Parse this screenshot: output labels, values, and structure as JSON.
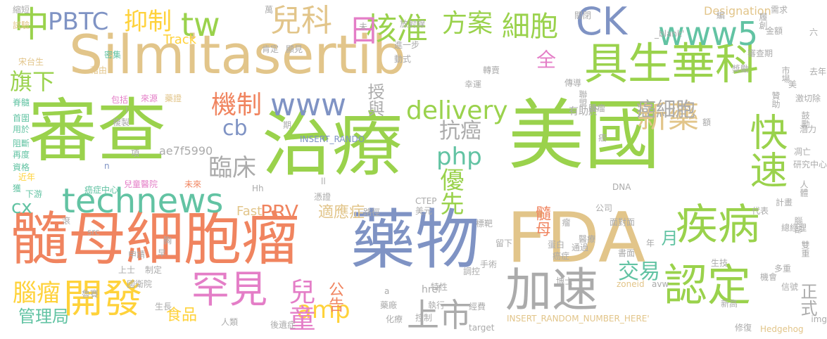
{
  "words": [
    {
      "text": "Silmitasertib",
      "color": "#e2c58a"
    },
    {
      "text": "美國",
      "color": "#9ad24c"
    },
    {
      "text": "審查",
      "color": "#9ad24c"
    },
    {
      "text": "治療",
      "color": "#9ad24c"
    },
    {
      "text": "FDA",
      "color": "#e2c58a"
    },
    {
      "text": "藥物",
      "color": "#7f93c4"
    },
    {
      "text": "髓母細胞瘤",
      "color": "#f0845f"
    },
    {
      "text": "具生華科",
      "color": "#9ad24c"
    },
    {
      "text": "加速",
      "color": "#ababab"
    },
    {
      "text": "疾病",
      "color": "#9ad24c"
    },
    {
      "text": "認定",
      "color": "#9ad24c"
    },
    {
      "text": "開發",
      "color": "#ffd23a"
    },
    {
      "text": "罕見",
      "color": "#e47ec7"
    },
    {
      "text": "technews",
      "color": "#62c3a3"
    },
    {
      "text": "www5",
      "color": "#62c3a3"
    },
    {
      "text": "CK",
      "color": "#7f93c4"
    },
    {
      "text": "www",
      "color": "#7f93c4"
    },
    {
      "text": "中",
      "color": "#9ad24c"
    },
    {
      "text": "快速",
      "color": "#9ad24c"
    },
    {
      "text": "新藥",
      "color": "#e2c58a"
    },
    {
      "text": "兒科",
      "color": "#e2c58a"
    },
    {
      "text": "核准",
      "color": "#9ad24c"
    },
    {
      "text": "日",
      "color": "#e47ec7"
    },
    {
      "text": "tw",
      "color": "#9ad24c"
    },
    {
      "text": "上市",
      "color": "#ababab"
    },
    {
      "text": "細胞",
      "color": "#9ad24c"
    },
    {
      "text": "方案",
      "color": "#9ad24c"
    },
    {
      "text": "PBTC",
      "color": "#7f93c4"
    },
    {
      "text": "抑制",
      "color": "#ffd23a"
    },
    {
      "text": "delivery",
      "color": "#9ad24c"
    },
    {
      "text": "機制",
      "color": "#f0845f"
    },
    {
      "text": "amp",
      "color": "#ffd23a"
    },
    {
      "text": "兒童",
      "color": "#e47ec7"
    },
    {
      "text": "腦瘤",
      "color": "#ffd23a"
    },
    {
      "text": "臨床",
      "color": "#ababab"
    },
    {
      "text": "優先",
      "color": "#9ad24c"
    },
    {
      "text": "php",
      "color": "#62c3a3"
    },
    {
      "text": "旗下",
      "color": "#9ad24c"
    },
    {
      "text": "cb",
      "color": "#7f93c4"
    },
    {
      "text": "PRV",
      "color": "#f0845f"
    },
    {
      "text": "抗癌",
      "color": "#ababab"
    },
    {
      "text": "癌細胞",
      "color": "#ababab"
    },
    {
      "text": "全",
      "color": "#e47ec7"
    },
    {
      "text": "授與",
      "color": "#ababab"
    },
    {
      "text": "交易",
      "color": "#62c3a3"
    },
    {
      "text": "cx",
      "color": "#62c3a3"
    },
    {
      "text": "適應症",
      "color": "#e2c58a"
    },
    {
      "text": "Fast",
      "color": "#e2c58a"
    },
    {
      "text": "管理局",
      "color": "#62c3a3"
    },
    {
      "text": "食品",
      "color": "#ffd23a"
    },
    {
      "text": "公告",
      "color": "#f0845f"
    },
    {
      "text": "月",
      "color": "#62c3a3"
    },
    {
      "text": "髓母",
      "color": "#f0845f"
    },
    {
      "text": "正式",
      "color": "#ababab"
    },
    {
      "text": "Track",
      "color": "#ffd23a"
    },
    {
      "text": "ae7f5990",
      "color": "#ababab"
    },
    {
      "text": "Designation",
      "color": "#e2c58a"
    },
    {
      "text": "有助於",
      "color": "#ababab"
    },
    {
      "text": "INSERT_RANDO",
      "color": "#7f93c4"
    },
    {
      "text": "INSERT_RANDOM_NUMBER_HERE'",
      "color": "#e2c58a"
    },
    {
      "text": "Hedgehog",
      "color": "#e2c58a"
    },
    {
      "text": "href",
      "color": "#ababab"
    },
    {
      "text": "zoneid",
      "color": "#e2c58a"
    },
    {
      "text": "avw",
      "color": "#ababab"
    },
    {
      "text": "target",
      "color": "#ababab"
    },
    {
      "text": "CTEP",
      "color": "#ababab"
    },
    {
      "text": "DNA",
      "color": "#ababab"
    },
    {
      "text": "_blank'",
      "color": "#ababab"
    },
    {
      "text": "src",
      "color": "#ababab"
    },
    {
      "text": "img",
      "color": "#ababab"
    },
    {
      "text": "Hh",
      "color": "#ababab"
    },
    {
      "text": "ll",
      "color": "#ababab"
    },
    {
      "text": "n",
      "color": "#7f93c4"
    },
    {
      "text": "a",
      "color": "#ababab"
    },
    {
      "text": "l",
      "color": "#ababab"
    },
    {
      "text": "縮短",
      "color": "#ababab"
    },
    {
      "text": "試驗",
      "color": "#e2c58a"
    },
    {
      "text": "密集",
      "color": "#62c3a3"
    },
    {
      "text": "宋台生",
      "color": "#e2c58a"
    },
    {
      "text": "藉由",
      "color": "#e2c58a"
    },
    {
      "text": "包括",
      "color": "#e47ec7"
    },
    {
      "text": "來源",
      "color": "#e47ec7"
    },
    {
      "text": "藥證",
      "color": "#e2c58a"
    },
    {
      "text": "複製",
      "color": "#ababab"
    },
    {
      "text": "脊髓",
      "color": "#62c3a3"
    },
    {
      "text": "首圍",
      "color": "#62c3a3"
    },
    {
      "text": "用於",
      "color": "#62c3a3"
    },
    {
      "text": "阻斷",
      "color": "#62c3a3"
    },
    {
      "text": "再度",
      "color": "#62c3a3"
    },
    {
      "text": "資格",
      "color": "#62c3a3"
    },
    {
      "text": "近年",
      "color": "#ffd23a"
    },
    {
      "text": "獲",
      "color": "#62c3a3"
    },
    {
      "text": "下游",
      "color": "#62c3a3"
    },
    {
      "text": "癌症中心",
      "color": "#62c3a3"
    },
    {
      "text": "兒童醫院",
      "color": "#e47ec7"
    },
    {
      "text": "未來",
      "color": "#f0845f"
    },
    {
      "text": "項",
      "color": "#ababab"
    },
    {
      "text": "期",
      "color": "#ababab"
    },
    {
      "text": "憑證",
      "color": "#ababab"
    },
    {
      "text": "路徑",
      "color": "#ababab"
    },
    {
      "text": "美元",
      "color": "#ababab"
    },
    {
      "text": "留下",
      "color": "#ababab"
    },
    {
      "text": "滾",
      "color": "#ababab"
    },
    {
      "text": "胸",
      "color": "#ababab"
    },
    {
      "text": "早",
      "color": "#ababab"
    },
    {
      "text": "申請",
      "color": "#ababab"
    },
    {
      "text": "上士",
      "color": "#ababab"
    },
    {
      "text": "制定",
      "color": "#ababab"
    },
    {
      "text": "國衛院",
      "color": "#ababab"
    },
    {
      "text": "魯賽",
      "color": "#ababab"
    },
    {
      "text": "生長",
      "color": "#ababab"
    },
    {
      "text": "人類",
      "color": "#ababab"
    },
    {
      "text": "後遺症",
      "color": "#ababab"
    },
    {
      "text": "化療",
      "color": "#ababab"
    },
    {
      "text": "控制",
      "color": "#ababab"
    },
    {
      "text": "藥廠",
      "color": "#ababab"
    },
    {
      "text": "執行",
      "color": "#ababab"
    },
    {
      "text": "經費",
      "color": "#ababab"
    },
    {
      "text": "特性",
      "color": "#ababab"
    },
    {
      "text": "調控",
      "color": "#ababab"
    },
    {
      "text": "標靶",
      "color": "#ababab"
    },
    {
      "text": "手術",
      "color": "#ababab"
    },
    {
      "text": "博士",
      "color": "#ababab"
    },
    {
      "text": "蛋白",
      "color": "#ababab"
    },
    {
      "text": "癌症",
      "color": "#ababab"
    },
    {
      "text": "醫療",
      "color": "#ababab"
    },
    {
      "text": "通過",
      "color": "#ababab"
    },
    {
      "text": "瘤",
      "color": "#ababab"
    },
    {
      "text": "面對面",
      "color": "#ababab"
    },
    {
      "text": "公司",
      "color": "#ababab"
    },
    {
      "text": "書面",
      "color": "#ababab"
    },
    {
      "text": "年",
      "color": "#ababab"
    },
    {
      "text": "生技",
      "color": "#ababab"
    },
    {
      "text": "新高",
      "color": "#ababab"
    },
    {
      "text": "機會",
      "color": "#ababab"
    },
    {
      "text": "多重",
      "color": "#ababab"
    },
    {
      "text": "修復",
      "color": "#ababab"
    },
    {
      "text": "代表",
      "color": "#ababab"
    },
    {
      "text": "計畫",
      "color": "#ababab"
    },
    {
      "text": "總經理",
      "color": "#ababab"
    },
    {
      "text": "腦部",
      "color": "#ababab"
    },
    {
      "text": "雙重",
      "color": "#ababab"
    },
    {
      "text": "信號",
      "color": "#ababab"
    },
    {
      "text": "研究中心",
      "color": "#ababab"
    },
    {
      "text": "人體",
      "color": "#ababab"
    },
    {
      "text": "凋亡",
      "color": "#ababab"
    },
    {
      "text": "潛力",
      "color": "#ababab"
    },
    {
      "text": "鼓勵",
      "color": "#ababab"
    },
    {
      "text": "激",
      "color": "#ababab"
    },
    {
      "text": "切除",
      "color": "#ababab"
    },
    {
      "text": "美",
      "color": "#ababab"
    },
    {
      "text": "贊助",
      "color": "#ababab"
    },
    {
      "text": "市場",
      "color": "#ababab"
    },
    {
      "text": "獎勵",
      "color": "#ababab"
    },
    {
      "text": "審查期",
      "color": "#ababab"
    },
    {
      "text": "去年",
      "color": "#ababab"
    },
    {
      "text": "六",
      "color": "#ababab"
    },
    {
      "text": "金額",
      "color": "#ababab"
    },
    {
      "text": "需求",
      "color": "#ababab"
    },
    {
      "text": "履創",
      "color": "#ababab"
    },
    {
      "text": "關閉",
      "color": "#ababab"
    },
    {
      "text": "轉賣",
      "color": "#ababab"
    },
    {
      "text": "幸運",
      "color": "#ababab"
    },
    {
      "text": "傳導",
      "color": "#ababab"
    },
    {
      "text": "聯盟",
      "color": "#ababab"
    },
    {
      "text": "腫瘤",
      "color": "#ababab"
    },
    {
      "text": "額",
      "color": "#ababab"
    },
    {
      "text": "放射線",
      "color": "#ababab"
    },
    {
      "text": "進一步",
      "color": "#ababab"
    },
    {
      "text": "動式",
      "color": "#ababab"
    },
    {
      "text": "未",
      "color": "#ababab"
    },
    {
      "text": "顯見",
      "color": "#ababab"
    },
    {
      "text": "肯定",
      "color": "#ababab"
    },
    {
      "text": "萬",
      "color": "#ababab"
    },
    {
      "text": "癌",
      "color": "#ababab"
    },
    {
      "text": "編",
      "color": "#ababab"
    }
  ]
}
